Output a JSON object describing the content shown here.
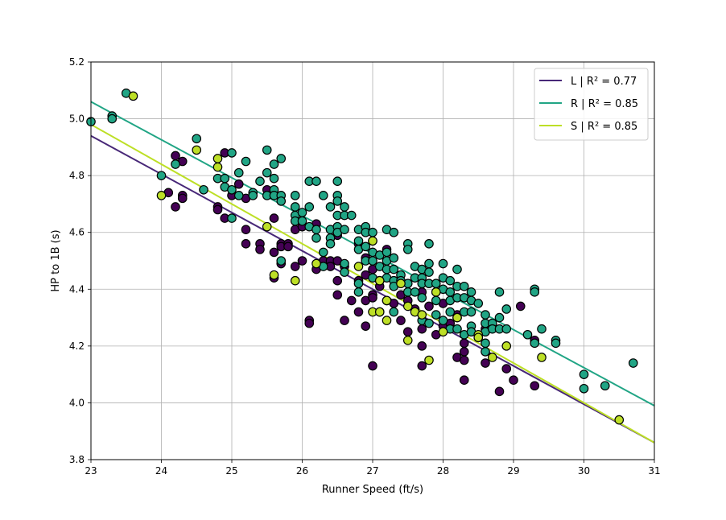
{
  "chart_data": {
    "type": "scatter",
    "title": "",
    "xlabel": "Runner Speed (ft/s)",
    "ylabel": "HP to 1B (s)",
    "xlim": [
      23,
      31
    ],
    "ylim": [
      3.8,
      5.2
    ],
    "x_ticks": [
      23,
      24,
      25,
      26,
      27,
      28,
      29,
      30,
      31
    ],
    "y_ticks": [
      3.8,
      4.0,
      4.2,
      4.4,
      4.6,
      4.8,
      5.0,
      5.2
    ],
    "x_tick_labels": [
      "23",
      "24",
      "25",
      "26",
      "27",
      "28",
      "29",
      "30",
      "31"
    ],
    "y_tick_labels": [
      "3.8",
      "4.0",
      "4.2",
      "4.4",
      "4.6",
      "4.8",
      "5.0",
      "5.2"
    ],
    "grid": true,
    "legend_position": "top-right",
    "series": [
      {
        "name": "L",
        "r2_label": "R² = 0.77",
        "color": "#440154",
        "line_color": "#482878",
        "trend": {
          "x": [
            23,
            31
          ],
          "y": [
            4.94,
            3.86
          ]
        },
        "points": [
          [
            24.1,
            4.74
          ],
          [
            24.2,
            4.87
          ],
          [
            24.2,
            4.69
          ],
          [
            24.3,
            4.85
          ],
          [
            24.3,
            4.73
          ],
          [
            24.3,
            4.72
          ],
          [
            24.8,
            4.69
          ],
          [
            24.8,
            4.68
          ],
          [
            24.9,
            4.88
          ],
          [
            24.9,
            4.65
          ],
          [
            25.0,
            4.73
          ],
          [
            25.1,
            4.77
          ],
          [
            25.2,
            4.72
          ],
          [
            25.2,
            4.61
          ],
          [
            25.2,
            4.56
          ],
          [
            25.4,
            4.56
          ],
          [
            25.4,
            4.54
          ],
          [
            25.5,
            4.75
          ],
          [
            25.6,
            4.65
          ],
          [
            25.6,
            4.53
          ],
          [
            25.6,
            4.44
          ],
          [
            25.7,
            4.56
          ],
          [
            25.7,
            4.55
          ],
          [
            25.7,
            4.49
          ],
          [
            25.8,
            4.56
          ],
          [
            25.8,
            4.55
          ],
          [
            25.9,
            4.61
          ],
          [
            25.9,
            4.48
          ],
          [
            26.0,
            4.62
          ],
          [
            26.0,
            4.5
          ],
          [
            26.1,
            4.29
          ],
          [
            26.1,
            4.28
          ],
          [
            26.2,
            4.63
          ],
          [
            26.2,
            4.47
          ],
          [
            26.3,
            4.5
          ],
          [
            26.4,
            4.5
          ],
          [
            26.4,
            4.48
          ],
          [
            26.5,
            4.59
          ],
          [
            26.5,
            4.5
          ],
          [
            26.5,
            4.43
          ],
          [
            26.5,
            4.38
          ],
          [
            26.6,
            4.48
          ],
          [
            26.6,
            4.29
          ],
          [
            26.7,
            4.36
          ],
          [
            26.8,
            4.56
          ],
          [
            26.8,
            4.43
          ],
          [
            26.8,
            4.32
          ],
          [
            26.9,
            4.51
          ],
          [
            26.9,
            4.45
          ],
          [
            26.9,
            4.36
          ],
          [
            26.9,
            4.27
          ],
          [
            27.0,
            4.47
          ],
          [
            27.0,
            4.38
          ],
          [
            27.0,
            4.37
          ],
          [
            27.0,
            4.13
          ],
          [
            27.1,
            4.41
          ],
          [
            27.1,
            4.32
          ],
          [
            27.2,
            4.54
          ],
          [
            27.2,
            4.36
          ],
          [
            27.3,
            4.35
          ],
          [
            27.4,
            4.38
          ],
          [
            27.4,
            4.29
          ],
          [
            27.5,
            4.36
          ],
          [
            27.5,
            4.25
          ],
          [
            27.6,
            4.33
          ],
          [
            27.7,
            4.39
          ],
          [
            27.7,
            4.26
          ],
          [
            27.7,
            4.2
          ],
          [
            27.7,
            4.13
          ],
          [
            27.8,
            4.34
          ],
          [
            27.9,
            4.24
          ],
          [
            28.0,
            4.35
          ],
          [
            28.0,
            4.27
          ],
          [
            28.1,
            4.28
          ],
          [
            28.2,
            4.31
          ],
          [
            28.2,
            4.16
          ],
          [
            28.3,
            4.21
          ],
          [
            28.3,
            4.18
          ],
          [
            28.3,
            4.15
          ],
          [
            28.3,
            4.08
          ],
          [
            28.5,
            4.23
          ],
          [
            28.6,
            4.26
          ],
          [
            28.6,
            4.14
          ],
          [
            28.7,
            4.28
          ],
          [
            28.8,
            4.04
          ],
          [
            28.9,
            4.12
          ],
          [
            29.0,
            4.08
          ],
          [
            29.1,
            4.34
          ],
          [
            29.3,
            4.22
          ],
          [
            29.3,
            4.06
          ]
        ]
      },
      {
        "name": "R",
        "r2_label": "R² = 0.85",
        "color": "#21a585",
        "line_color": "#21a585",
        "trend": {
          "x": [
            23,
            31
          ],
          "y": [
            5.06,
            3.99
          ]
        },
        "points": [
          [
            23.0,
            4.99
          ],
          [
            23.3,
            5.01
          ],
          [
            23.3,
            5.0
          ],
          [
            23.5,
            5.09
          ],
          [
            24.0,
            4.8
          ],
          [
            24.2,
            4.84
          ],
          [
            24.5,
            4.93
          ],
          [
            24.6,
            4.75
          ],
          [
            24.8,
            4.79
          ],
          [
            24.9,
            4.79
          ],
          [
            24.9,
            4.76
          ],
          [
            25.0,
            4.88
          ],
          [
            25.0,
            4.75
          ],
          [
            25.0,
            4.65
          ],
          [
            25.1,
            4.81
          ],
          [
            25.1,
            4.73
          ],
          [
            25.2,
            4.85
          ],
          [
            25.3,
            4.74
          ],
          [
            25.3,
            4.73
          ],
          [
            25.4,
            4.78
          ],
          [
            25.5,
            4.89
          ],
          [
            25.5,
            4.81
          ],
          [
            25.5,
            4.73
          ],
          [
            25.6,
            4.84
          ],
          [
            25.6,
            4.79
          ],
          [
            25.6,
            4.75
          ],
          [
            25.6,
            4.73
          ],
          [
            25.7,
            4.86
          ],
          [
            25.7,
            4.73
          ],
          [
            25.7,
            4.71
          ],
          [
            25.7,
            4.5
          ],
          [
            25.9,
            4.73
          ],
          [
            25.9,
            4.69
          ],
          [
            25.9,
            4.66
          ],
          [
            25.9,
            4.64
          ],
          [
            26.0,
            4.67
          ],
          [
            26.0,
            4.64
          ],
          [
            26.1,
            4.78
          ],
          [
            26.1,
            4.69
          ],
          [
            26.1,
            4.62
          ],
          [
            26.2,
            4.78
          ],
          [
            26.2,
            4.61
          ],
          [
            26.2,
            4.58
          ],
          [
            26.3,
            4.73
          ],
          [
            26.3,
            4.53
          ],
          [
            26.3,
            4.48
          ],
          [
            26.4,
            4.69
          ],
          [
            26.4,
            4.61
          ],
          [
            26.4,
            4.58
          ],
          [
            26.4,
            4.56
          ],
          [
            26.5,
            4.78
          ],
          [
            26.5,
            4.73
          ],
          [
            26.5,
            4.71
          ],
          [
            26.5,
            4.66
          ],
          [
            26.5,
            4.62
          ],
          [
            26.5,
            4.6
          ],
          [
            26.6,
            4.69
          ],
          [
            26.6,
            4.66
          ],
          [
            26.6,
            4.61
          ],
          [
            26.6,
            4.49
          ],
          [
            26.6,
            4.46
          ],
          [
            26.7,
            4.66
          ],
          [
            26.8,
            4.61
          ],
          [
            26.8,
            4.57
          ],
          [
            26.8,
            4.54
          ],
          [
            26.8,
            4.42
          ],
          [
            26.8,
            4.39
          ],
          [
            26.9,
            4.62
          ],
          [
            26.9,
            4.6
          ],
          [
            26.9,
            4.55
          ],
          [
            26.9,
            4.5
          ],
          [
            27.0,
            4.6
          ],
          [
            27.0,
            4.57
          ],
          [
            27.0,
            4.53
          ],
          [
            27.0,
            4.5
          ],
          [
            27.0,
            4.44
          ],
          [
            27.1,
            4.52
          ],
          [
            27.1,
            4.48
          ],
          [
            27.1,
            4.43
          ],
          [
            27.2,
            4.61
          ],
          [
            27.2,
            4.53
          ],
          [
            27.2,
            4.5
          ],
          [
            27.2,
            4.47
          ],
          [
            27.2,
            4.44
          ],
          [
            27.3,
            4.6
          ],
          [
            27.3,
            4.51
          ],
          [
            27.3,
            4.47
          ],
          [
            27.3,
            4.43
          ],
          [
            27.3,
            4.41
          ],
          [
            27.3,
            4.32
          ],
          [
            27.4,
            4.45
          ],
          [
            27.4,
            4.43
          ],
          [
            27.5,
            4.56
          ],
          [
            27.5,
            4.54
          ],
          [
            27.5,
            4.42
          ],
          [
            27.5,
            4.39
          ],
          [
            27.6,
            4.48
          ],
          [
            27.6,
            4.44
          ],
          [
            27.6,
            4.39
          ],
          [
            27.7,
            4.47
          ],
          [
            27.7,
            4.44
          ],
          [
            27.7,
            4.42
          ],
          [
            27.7,
            4.37
          ],
          [
            27.7,
            4.29
          ],
          [
            27.8,
            4.56
          ],
          [
            27.8,
            4.49
          ],
          [
            27.8,
            4.46
          ],
          [
            27.8,
            4.42
          ],
          [
            27.8,
            4.28
          ],
          [
            27.9,
            4.42
          ],
          [
            27.9,
            4.39
          ],
          [
            27.9,
            4.36
          ],
          [
            27.9,
            4.31
          ],
          [
            28.0,
            4.49
          ],
          [
            28.0,
            4.44
          ],
          [
            28.0,
            4.4
          ],
          [
            28.0,
            4.29
          ],
          [
            28.1,
            4.43
          ],
          [
            28.1,
            4.39
          ],
          [
            28.1,
            4.36
          ],
          [
            28.1,
            4.32
          ],
          [
            28.1,
            4.26
          ],
          [
            28.2,
            4.47
          ],
          [
            28.2,
            4.41
          ],
          [
            28.2,
            4.37
          ],
          [
            28.2,
            4.3
          ],
          [
            28.2,
            4.26
          ],
          [
            28.3,
            4.41
          ],
          [
            28.3,
            4.37
          ],
          [
            28.3,
            4.32
          ],
          [
            28.3,
            4.24
          ],
          [
            28.4,
            4.39
          ],
          [
            28.4,
            4.36
          ],
          [
            28.4,
            4.32
          ],
          [
            28.4,
            4.27
          ],
          [
            28.4,
            4.25
          ],
          [
            28.5,
            4.35
          ],
          [
            28.6,
            4.31
          ],
          [
            28.6,
            4.28
          ],
          [
            28.6,
            4.25
          ],
          [
            28.6,
            4.21
          ],
          [
            28.6,
            4.18
          ],
          [
            28.7,
            4.28
          ],
          [
            28.7,
            4.26
          ],
          [
            28.8,
            4.39
          ],
          [
            28.8,
            4.3
          ],
          [
            28.8,
            4.26
          ],
          [
            28.9,
            4.33
          ],
          [
            28.9,
            4.26
          ],
          [
            29.2,
            4.24
          ],
          [
            29.3,
            4.4
          ],
          [
            29.3,
            4.39
          ],
          [
            29.3,
            4.21
          ],
          [
            29.4,
            4.26
          ],
          [
            29.6,
            4.22
          ],
          [
            29.6,
            4.21
          ],
          [
            30.0,
            4.1
          ],
          [
            30.0,
            4.05
          ],
          [
            30.3,
            4.06
          ],
          [
            30.7,
            4.14
          ]
        ]
      },
      {
        "name": "S",
        "r2_label": "R² = 0.85",
        "color": "#bddf26",
        "line_color": "#bddf26",
        "trend": {
          "x": [
            23,
            31
          ],
          "y": [
            4.98,
            3.86
          ]
        },
        "points": [
          [
            23.6,
            5.08
          ],
          [
            24.0,
            4.73
          ],
          [
            24.5,
            4.89
          ],
          [
            24.8,
            4.86
          ],
          [
            24.8,
            4.83
          ],
          [
            25.5,
            4.62
          ],
          [
            25.6,
            4.45
          ],
          [
            25.9,
            4.43
          ],
          [
            26.2,
            4.49
          ],
          [
            26.8,
            4.48
          ],
          [
            27.0,
            4.57
          ],
          [
            27.0,
            4.32
          ],
          [
            27.1,
            4.43
          ],
          [
            27.1,
            4.32
          ],
          [
            27.2,
            4.36
          ],
          [
            27.2,
            4.29
          ],
          [
            27.4,
            4.42
          ],
          [
            27.5,
            4.34
          ],
          [
            27.5,
            4.22
          ],
          [
            27.6,
            4.32
          ],
          [
            27.7,
            4.31
          ],
          [
            27.8,
            4.15
          ],
          [
            27.9,
            4.39
          ],
          [
            28.0,
            4.25
          ],
          [
            28.2,
            4.3
          ],
          [
            28.5,
            4.24
          ],
          [
            28.5,
            4.23
          ],
          [
            28.7,
            4.16
          ],
          [
            28.9,
            4.2
          ],
          [
            29.4,
            4.16
          ],
          [
            30.5,
            3.94
          ]
        ]
      }
    ]
  }
}
